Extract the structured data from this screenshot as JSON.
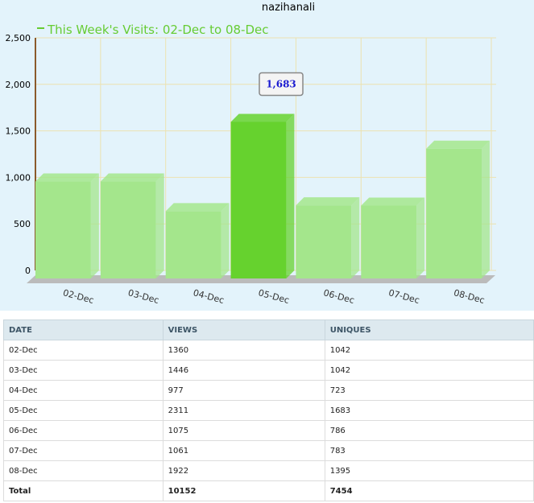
{
  "chart_data": {
    "type": "bar",
    "title": "nazihanali",
    "series_name": "This Week's Visits: 02-Dec to 08-Dec",
    "categories": [
      "02-Dec",
      "03-Dec",
      "04-Dec",
      "05-Dec",
      "06-Dec",
      "07-Dec",
      "08-Dec"
    ],
    "values": [
      1042,
      1042,
      723,
      1683,
      786,
      783,
      1395
    ],
    "value_labels": [
      null,
      null,
      null,
      "1,683",
      null,
      null,
      null
    ],
    "color": "#a4e68c",
    "highlight_color": "#66d22e",
    "ylim": [
      0,
      2500
    ],
    "yticks": [
      0,
      {
        "value": 500,
        "label": "500"
      },
      {
        "value": 1000,
        "label": "1,000"
      },
      {
        "value": 1500,
        "label": "1,500"
      },
      {
        "value": 2000,
        "label": "2,000"
      },
      {
        "value": 2500,
        "label": "2,500"
      }
    ],
    "grid": true
  },
  "table": {
    "columns": [
      "DATE",
      "VIEWS",
      "UNIQUES"
    ],
    "rows": [
      [
        "02-Dec",
        "1360",
        "1042"
      ],
      [
        "03-Dec",
        "1446",
        "1042"
      ],
      [
        "04-Dec",
        "977",
        "723"
      ],
      [
        "05-Dec",
        "2311",
        "1683"
      ],
      [
        "06-Dec",
        "1075",
        "786"
      ],
      [
        "07-Dec",
        "1061",
        "783"
      ],
      [
        "08-Dec",
        "1922",
        "1395"
      ],
      [
        "Total",
        "10152",
        "7454"
      ]
    ]
  }
}
